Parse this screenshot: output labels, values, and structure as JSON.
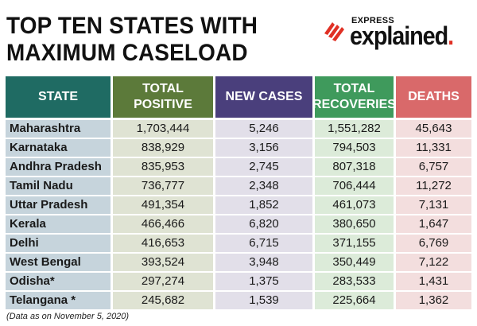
{
  "title": {
    "line1": "TOP TEN STATES WITH",
    "line2": "MAXIMUM CASELOAD"
  },
  "logo": {
    "small": "EXPRESS",
    "main": "explained",
    "dot": ".",
    "brand_color": "#e03024"
  },
  "colors": {
    "state_header": "#1f6b63",
    "total_positive_header": "#5c7a3a",
    "new_cases_header": "#4a3f7c",
    "total_recoveries_header": "#3f9a5c",
    "deaths_header": "#d9696a",
    "row_bg_state": "#c6d4dc",
    "row_bg_total": "#dfe3d3",
    "row_bg_new": "#e2dfe9",
    "row_bg_recoveries": "#dcebd9",
    "row_bg_deaths": "#f3dede"
  },
  "table": {
    "headers": {
      "state": "STATE",
      "total_positive": "TOTAL\nPOSITIVE",
      "new_cases": "NEW CASES",
      "total_recoveries": "TOTAL\nRECOVERIES",
      "deaths": "DEATHS"
    },
    "rows": [
      {
        "state": "Maharashtra",
        "total_positive": "1,703,444",
        "new_cases": "5,246",
        "total_recoveries": "1,551,282",
        "deaths": "45,643"
      },
      {
        "state": "Karnataka",
        "total_positive": "838,929",
        "new_cases": "3,156",
        "total_recoveries": "794,503",
        "deaths": "11,331"
      },
      {
        "state": "Andhra Pradesh",
        "total_positive": "835,953",
        "new_cases": "2,745",
        "total_recoveries": "807,318",
        "deaths": "6,757"
      },
      {
        "state": "Tamil Nadu",
        "total_positive": "736,777",
        "new_cases": "2,348",
        "total_recoveries": "706,444",
        "deaths": "11,272"
      },
      {
        "state": "Uttar Pradesh",
        "total_positive": "491,354",
        "new_cases": "1,852",
        "total_recoveries": "461,073",
        "deaths": "7,131"
      },
      {
        "state": "Kerala",
        "total_positive": "466,466",
        "new_cases": "6,820",
        "total_recoveries": "380,650",
        "deaths": "1,647"
      },
      {
        "state": "Delhi",
        "total_positive": "416,653",
        "new_cases": "6,715",
        "total_recoveries": "371,155",
        "deaths": "6,769"
      },
      {
        "state": "West Bengal",
        "total_positive": "393,524",
        "new_cases": "3,948",
        "total_recoveries": "350,449",
        "deaths": "7,122"
      },
      {
        "state": "Odisha*",
        "total_positive": "297,274",
        "new_cases": "1,375",
        "total_recoveries": "283,533",
        "deaths": "1,431"
      },
      {
        "state": "Telangana *",
        "total_positive": "245,682",
        "new_cases": "1,539",
        "total_recoveries": "225,664",
        "deaths": "1,362"
      }
    ]
  },
  "note": "(Data as on November 5, 2020)"
}
